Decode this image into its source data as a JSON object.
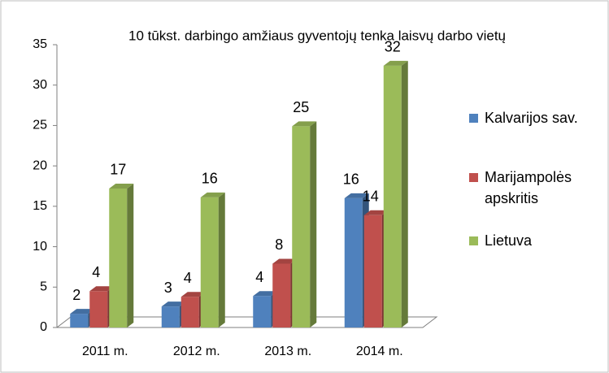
{
  "chart_data": {
    "type": "bar3d",
    "title": "10 tūkst. darbingo amžiaus gyventojų tenka laisvų darbo vietų",
    "categories": [
      "2011 m.",
      "2012 m.",
      "2013 m.",
      "2014 m."
    ],
    "series": [
      {
        "name": "Kalvarijos sav.",
        "color": "#4f81bd",
        "values": [
          1.7,
          2.6,
          3.9,
          16.0
        ],
        "value_labels": [
          "2",
          "3",
          "4",
          "16"
        ]
      },
      {
        "name": "Marijampolės apskritis",
        "color": "#c0504d",
        "values": [
          4.5,
          3.8,
          7.9,
          13.9
        ],
        "value_labels": [
          "4",
          "4",
          "8",
          "14"
        ]
      },
      {
        "name": "Lietuva",
        "color": "#9bbb59",
        "values": [
          17.2,
          16.1,
          24.9,
          32.4
        ],
        "value_labels": [
          "17",
          "16",
          "25",
          "32"
        ]
      }
    ],
    "ylim": [
      0,
      35
    ],
    "yticks": [
      0,
      5,
      10,
      15,
      20,
      25,
      30,
      35
    ],
    "legend": "right"
  }
}
